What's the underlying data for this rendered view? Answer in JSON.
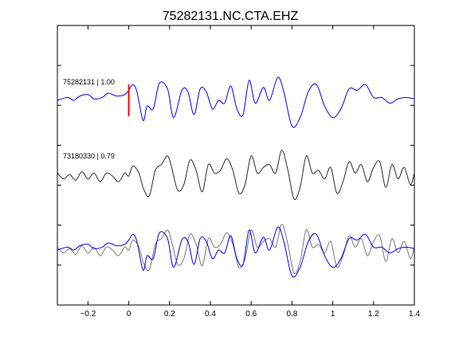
{
  "title": "75282131.NC.CTA.EHZ",
  "chart_data": {
    "type": "line",
    "title": "75282131.NC.CTA.EHZ",
    "xlabel": "",
    "ylabel": "",
    "xlim": [
      -0.35,
      1.4
    ],
    "xticks": [
      -0.2,
      0,
      0.2,
      0.4,
      0.6,
      0.8,
      1,
      1.2,
      1.4
    ],
    "xtick_labels": [
      "−0.2",
      "0",
      "0.2",
      "0.4",
      "0.6",
      "0.8",
      "1",
      "1.2",
      "1.4"
    ],
    "y_ticks_labeled": false,
    "grid": false,
    "pick_time": 0,
    "colors": {
      "blue": "#0000ff",
      "dark": "#2a2a2a",
      "gray": "#777777",
      "pick": "#ff0000"
    },
    "traces": [
      {
        "label": "75282131 | 1.00"
      },
      {
        "label": "73180330 | 0.79"
      }
    ],
    "wave_blue": {
      "t": [
        -0.35,
        -0.3,
        -0.27,
        -0.24,
        -0.2,
        -0.17,
        -0.13,
        -0.1,
        -0.06,
        -0.02,
        0.0,
        0.02,
        0.04,
        0.07,
        0.09,
        0.12,
        0.15,
        0.19,
        0.22,
        0.26,
        0.29,
        0.32,
        0.35,
        0.38,
        0.41,
        0.44,
        0.47,
        0.5,
        0.53,
        0.56,
        0.59,
        0.62,
        0.66,
        0.69,
        0.73,
        0.76,
        0.8,
        0.84,
        0.88,
        0.92,
        0.96,
        1.0,
        1.04,
        1.08,
        1.12,
        1.16,
        1.2,
        1.24,
        1.28,
        1.32,
        1.36,
        1.4
      ],
      "v": [
        0.0,
        0.1,
        0.0,
        0.15,
        0.2,
        0.05,
        0.1,
        0.25,
        0.15,
        0.2,
        0.35,
        0.55,
        0.3,
        -0.7,
        -0.2,
        -0.3,
        0.6,
        0.4,
        -0.6,
        0.35,
        0.3,
        -0.5,
        0.4,
        0.3,
        -0.3,
        0.0,
        -0.1,
        0.5,
        -0.3,
        -0.5,
        0.7,
        -0.1,
        0.45,
        0.0,
        0.8,
        0.3,
        -0.9,
        -0.6,
        0.3,
        0.55,
        -0.2,
        -0.6,
        -0.3,
        0.4,
        0.35,
        0.55,
        0.1,
        0.1,
        -0.1,
        0.05,
        0.1,
        0.05
      ]
    },
    "wave_dark": {
      "t": [
        -0.35,
        -0.32,
        -0.29,
        -0.26,
        -0.23,
        -0.2,
        -0.17,
        -0.14,
        -0.11,
        -0.08,
        -0.05,
        -0.02,
        0.0,
        0.02,
        0.05,
        0.07,
        0.1,
        0.13,
        0.16,
        0.19,
        0.21,
        0.24,
        0.27,
        0.3,
        0.33,
        0.36,
        0.39,
        0.42,
        0.45,
        0.48,
        0.51,
        0.54,
        0.57,
        0.6,
        0.63,
        0.66,
        0.69,
        0.72,
        0.75,
        0.78,
        0.81,
        0.84,
        0.87,
        0.9,
        0.93,
        0.96,
        0.99,
        1.02,
        1.05,
        1.08,
        1.11,
        1.14,
        1.17,
        1.2,
        1.23,
        1.26,
        1.29,
        1.32,
        1.35,
        1.38,
        1.4
      ],
      "v": [
        0.1,
        -0.1,
        0.05,
        -0.15,
        0.15,
        -0.1,
        0.1,
        -0.2,
        0.1,
        0.0,
        -0.2,
        0.1,
        0.0,
        0.35,
        0.1,
        -0.4,
        -0.7,
        0.2,
        0.4,
        0.7,
        0.3,
        -0.5,
        -0.3,
        0.55,
        0.2,
        -0.55,
        0.4,
        0.1,
        0.2,
        0.6,
        0.2,
        -0.6,
        -0.3,
        0.7,
        0.1,
        0.3,
        0.4,
        0.1,
        0.9,
        0.2,
        -0.8,
        -0.4,
        0.7,
        0.1,
        0.2,
        -0.1,
        0.3,
        -0.6,
        -0.2,
        0.5,
        0.1,
        0.4,
        -0.2,
        0.3,
        0.5,
        -0.4,
        0.4,
        -0.1,
        0.3,
        -0.3,
        0.1
      ]
    }
  }
}
